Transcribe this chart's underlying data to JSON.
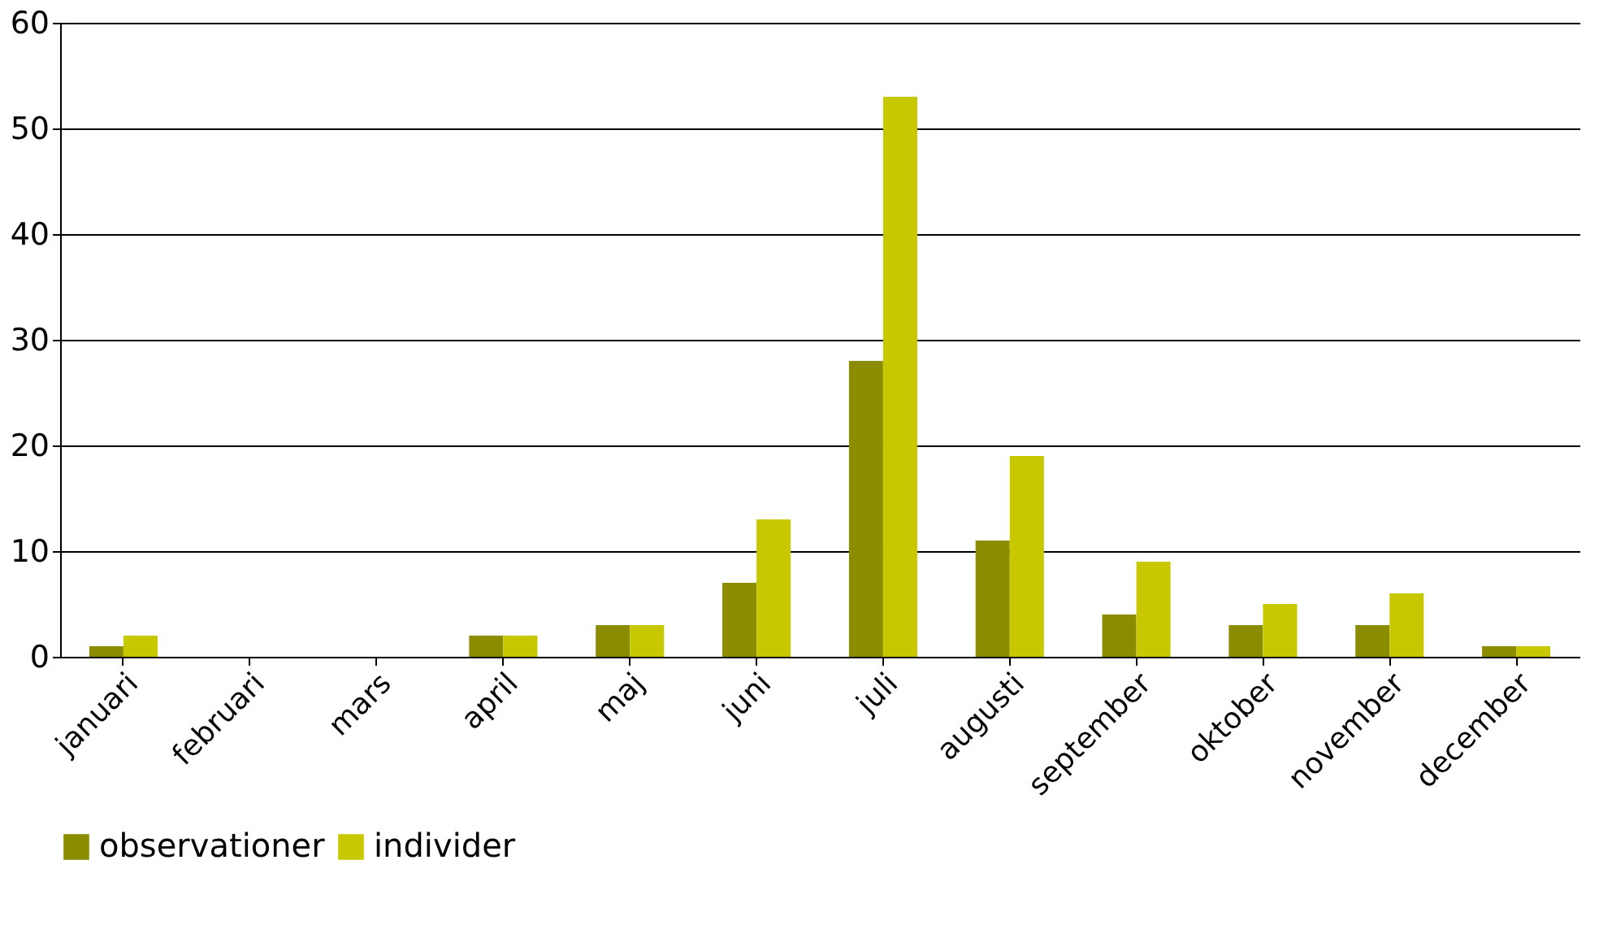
{
  "chart_data": {
    "type": "bar",
    "categories": [
      "januari",
      "februari",
      "mars",
      "april",
      "maj",
      "juni",
      "juli",
      "augusti",
      "september",
      "oktober",
      "november",
      "december"
    ],
    "series": [
      {
        "name": "observationer",
        "color": "#8c8c00",
        "values": [
          1,
          0,
          0,
          2,
          3,
          7,
          28,
          11,
          4,
          3,
          3,
          1
        ]
      },
      {
        "name": "individer",
        "color": "#c8c800",
        "values": [
          2,
          0,
          0,
          2,
          3,
          13,
          53,
          19,
          9,
          5,
          6,
          1
        ]
      }
    ],
    "ylim": [
      0,
      60
    ],
    "yticks": [
      0,
      10,
      20,
      30,
      40,
      50,
      60
    ],
    "grid": "y",
    "legend": "bottom"
  }
}
